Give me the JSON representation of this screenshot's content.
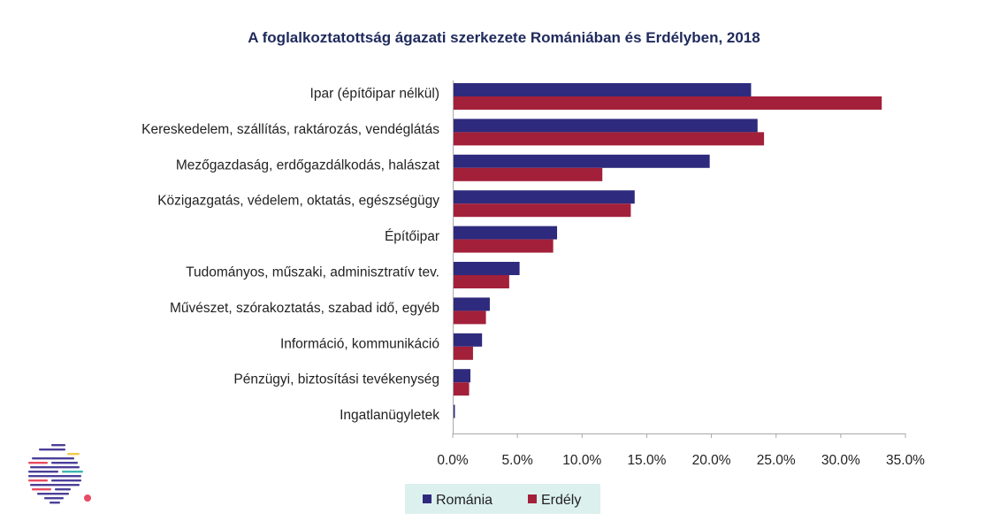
{
  "chart_data": {
    "type": "bar",
    "orientation": "horizontal",
    "title": "A foglalkoztatottság ágazati szerkezete Romániában és Erdélyben, 2018",
    "categories": [
      "Ipar (építőipar nélkül)",
      "Kereskedelem, szállítás, raktározás, vendéglátás",
      "Mezőgazdaság, erdőgazdálkodás, halászat",
      "Közigazgatás, védelem, oktatás, egészségügy",
      "Építőipar",
      "Tudományos, műszaki, adminisztratív tev.",
      "Művészet, szórakoztatás, szabad idő, egyéb",
      "Információ, kommunikáció",
      "Pénzügyi, biztosítási tevékenység",
      "Ingatlanügyletek"
    ],
    "series": [
      {
        "name": "Románia",
        "color": "#2e2a7d",
        "values": [
          23.0,
          23.5,
          19.8,
          14.0,
          8.0,
          5.1,
          2.8,
          2.2,
          1.3,
          0.1
        ]
      },
      {
        "name": "Erdély",
        "color": "#a3203a",
        "values": [
          33.1,
          24.0,
          11.5,
          13.7,
          7.7,
          4.3,
          2.5,
          1.5,
          1.2,
          0.0
        ]
      }
    ],
    "x_ticks": [
      "0.0%",
      "5.0%",
      "10.0%",
      "15.0%",
      "20.0%",
      "25.0%",
      "30.0%",
      "35.0%"
    ],
    "xlim": [
      0,
      35
    ],
    "legend_position": "bottom",
    "grid": false
  },
  "legend": {
    "background": "#dcf0ee"
  },
  "logo": {
    "name": "striped-logo-icon",
    "colors": [
      "#4b3f99",
      "#e84b63",
      "#f2c94c",
      "#3fb6b0"
    ]
  }
}
